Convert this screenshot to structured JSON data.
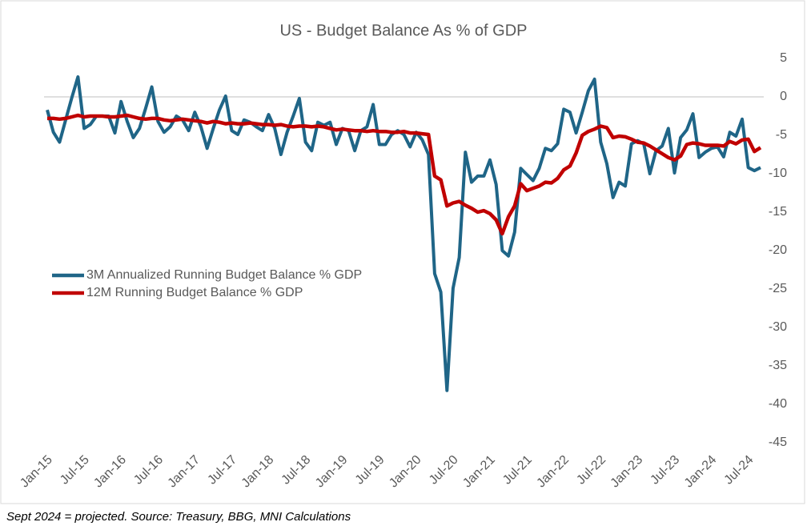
{
  "chart_data": {
    "type": "line",
    "title": "US - Budget Balance As % of GDP",
    "categories": [
      "Jan-15",
      null,
      null,
      null,
      null,
      null,
      "Jul-15",
      null,
      null,
      null,
      null,
      null,
      "Jan-16",
      null,
      null,
      null,
      null,
      null,
      "Jul-16",
      null,
      null,
      null,
      null,
      null,
      "Jan-17",
      null,
      null,
      null,
      null,
      null,
      "Jul-17",
      null,
      null,
      null,
      null,
      null,
      "Jan-18",
      null,
      null,
      null,
      null,
      null,
      "Jul-18",
      null,
      null,
      null,
      null,
      null,
      "Jan-19",
      null,
      null,
      null,
      null,
      null,
      "Jul-19",
      null,
      null,
      null,
      null,
      null,
      "Jan-20",
      null,
      null,
      null,
      null,
      null,
      "Jul-20",
      null,
      null,
      null,
      null,
      null,
      "Jan-21",
      null,
      null,
      null,
      null,
      null,
      "Jul-21",
      null,
      null,
      null,
      null,
      null,
      "Jan-22",
      null,
      null,
      null,
      null,
      null,
      "Jul-22",
      null,
      null,
      null,
      null,
      null,
      "Jan-23",
      null,
      null,
      null,
      null,
      null,
      "Jul-23",
      null,
      null,
      null,
      null,
      null,
      "Jan-24",
      null,
      null,
      null,
      null,
      null,
      "Jul-24",
      null,
      null
    ],
    "series": [
      {
        "name": "3M Annualized Running Budget Balance % GDP",
        "color": "#1f6587",
        "values": [
          -1.7,
          -4.6,
          -5.9,
          -3.0,
          -0.1,
          2.6,
          -4.1,
          -3.6,
          -2.5,
          -2.5,
          -2.5,
          -4.7,
          -0.6,
          -3.2,
          -5.3,
          -4.1,
          -1.5,
          1.3,
          -3.2,
          -4.6,
          -3.9,
          -2.5,
          -3.0,
          -4.4,
          -2.0,
          -3.9,
          -6.7,
          -4.1,
          -1.7,
          0.1,
          -4.4,
          -4.9,
          -3.0,
          -3.3,
          -3.9,
          -4.4,
          -2.3,
          -4.1,
          -7.5,
          -4.6,
          -2.5,
          -0.2,
          -5.9,
          -7.0,
          -3.3,
          -3.7,
          -3.3,
          -6.2,
          -4.1,
          -4.4,
          -7.0,
          -4.4,
          -3.9,
          -1.0,
          -6.2,
          -6.2,
          -4.9,
          -4.4,
          -4.9,
          -6.5,
          -4.6,
          -5.6,
          -7.5,
          -23.0,
          -25.4,
          -38.2,
          -24.9,
          -20.9,
          -7.2,
          -11.1,
          -10.3,
          -10.3,
          -8.2,
          -11.4,
          -20.0,
          -20.7,
          -17.6,
          -9.3,
          -10.1,
          -10.9,
          -9.3,
          -6.7,
          -7.0,
          -6.1,
          -1.6,
          -2.0,
          -4.7,
          -2.0,
          0.8,
          2.3,
          -5.9,
          -8.7,
          -13.1,
          -11.1,
          -11.6,
          -6.1,
          -5.7,
          -6.1,
          -10.0,
          -7.0,
          -6.4,
          -4.1,
          -9.9,
          -5.3,
          -4.3,
          -2.2,
          -7.9,
          -7.2,
          -6.7,
          -6.5,
          -7.8,
          -4.6,
          -5.1,
          -2.9,
          -9.2,
          -9.6,
          -9.2
        ]
      },
      {
        "name": "12M Running Budget Balance % GDP",
        "color": "#c00000",
        "values": [
          -2.8,
          -2.8,
          -2.9,
          -2.8,
          -2.6,
          -2.4,
          -2.6,
          -2.5,
          -2.5,
          -2.5,
          -2.6,
          -2.6,
          -2.5,
          -2.4,
          -2.6,
          -2.8,
          -2.9,
          -2.8,
          -2.8,
          -3.0,
          -3.1,
          -3.0,
          -2.9,
          -3.0,
          -3.1,
          -3.2,
          -3.4,
          -3.2,
          -3.3,
          -3.5,
          -3.4,
          -3.5,
          -3.5,
          -3.4,
          -3.5,
          -3.6,
          -3.6,
          -3.7,
          -3.6,
          -3.8,
          -3.9,
          -3.8,
          -3.8,
          -3.9,
          -3.8,
          -3.9,
          -4.1,
          -4.3,
          -4.2,
          -4.3,
          -4.4,
          -4.4,
          -4.5,
          -4.4,
          -4.5,
          -4.5,
          -4.6,
          -4.6,
          -4.5,
          -4.7,
          -4.7,
          -4.8,
          -4.9,
          -10.3,
          -10.8,
          -14.2,
          -13.8,
          -13.6,
          -14.1,
          -14.5,
          -15.0,
          -14.8,
          -15.2,
          -16.0,
          -17.8,
          -15.6,
          -14.2,
          -11.3,
          -12.2,
          -11.9,
          -11.6,
          -11.1,
          -11.2,
          -10.6,
          -9.5,
          -9.0,
          -7.3,
          -5.0,
          -4.5,
          -4.2,
          -3.8,
          -4.0,
          -5.3,
          -5.1,
          -5.2,
          -5.5,
          -5.9,
          -6.0,
          -6.4,
          -6.9,
          -7.4,
          -7.9,
          -8.2,
          -7.7,
          -6.2,
          -6.0,
          -6.1,
          -6.3,
          -6.3,
          -6.3,
          -6.4,
          -5.8,
          -6.1,
          -5.6,
          -5.5,
          -7.1,
          -6.6
        ]
      }
    ],
    "ylim": [
      -45,
      5
    ],
    "yticks": [
      5,
      0,
      -5,
      -10,
      -15,
      -20,
      -25,
      -30,
      -35,
      -40,
      -45
    ],
    "grid": false,
    "legend": "left",
    "note": "Sept 2024 = projected. Source: Treasury, BBG, MNI Calculations"
  }
}
